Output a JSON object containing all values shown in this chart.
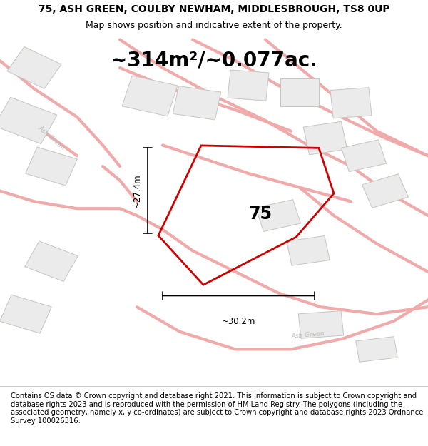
{
  "title": "75, ASH GREEN, COULBY NEWHAM, MIDDLESBROUGH, TS8 0UP",
  "subtitle": "Map shows position and indicative extent of the property.",
  "area_text": "~314m²/~0.077ac.",
  "label_75": "75",
  "dim_width": "~30.2m",
  "dim_height": "~27.4m",
  "footer": "Contains OS data © Crown copyright and database right 2021. This information is subject to Crown copyright and database rights 2023 and is reproduced with the permission of HM Land Registry. The polygons (including the associated geometry, namely x, y co-ordinates) are subject to Crown copyright and database rights 2023 Ordnance Survey 100026316.",
  "map_bg": "#f7f7f5",
  "road_fill": "#fce8e8",
  "road_edge": "#f0b0b0",
  "building_fill": "#ebebeb",
  "building_edge": "#c8c5c0",
  "plot_color": "#cc0000",
  "title_fontsize": 10,
  "subtitle_fontsize": 9,
  "area_fontsize": 20,
  "footer_fontsize": 7.2,
  "street_color": "#bbbbbb"
}
